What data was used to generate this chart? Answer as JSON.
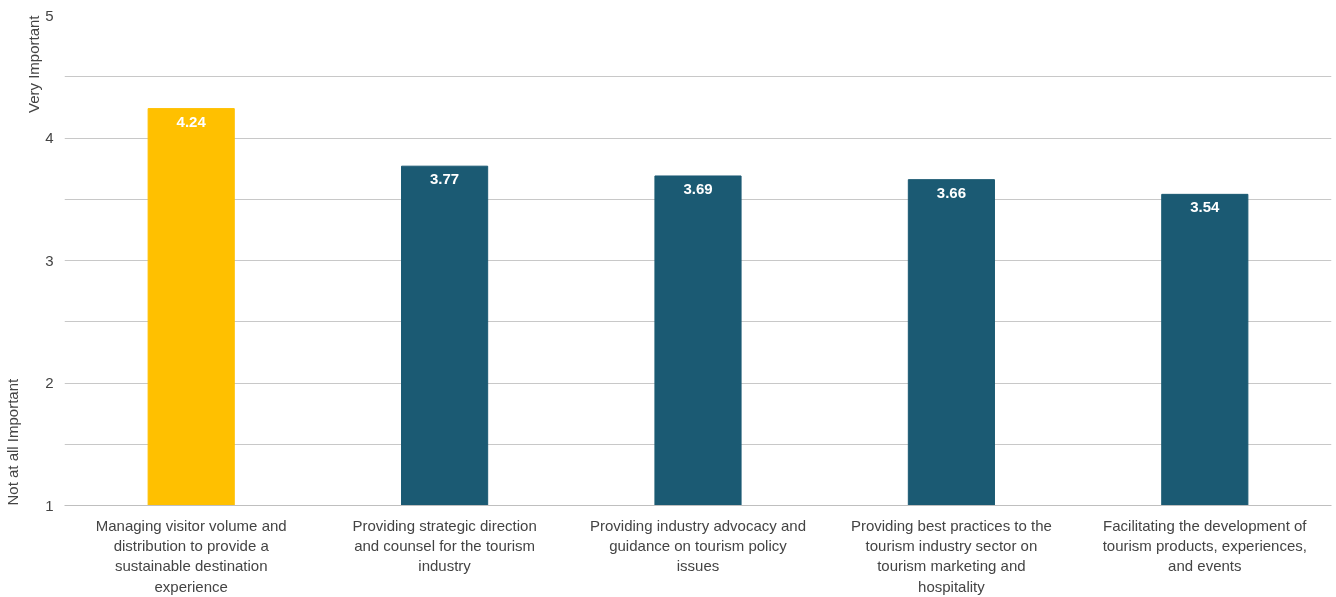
{
  "chart_data": {
    "type": "bar",
    "categories": [
      "Managing visitor volume and distribution to provide a sustainable destination experience",
      "Providing strategic direction and counsel for the tourism industry",
      "Providing industry advocacy and guidance on tourism policy issues",
      "Providing best practices to the tourism industry sector on tourism marketing and hospitality",
      "Facilitating the development of tourism products, experiences, and events"
    ],
    "values": [
      4.24,
      3.77,
      3.69,
      3.66,
      3.54
    ],
    "colors": [
      "#ffc000",
      "#1b5a73",
      "#1b5a73",
      "#1b5a73",
      "#1b5a73"
    ],
    "ylim": [
      1,
      5
    ],
    "yticks": [
      1,
      {
        "value": 1.5,
        "label": null
      },
      2,
      {
        "value": 2.5,
        "label": null
      },
      3,
      {
        "value": 3.5,
        "label": null
      },
      4,
      {
        "value": 4.5,
        "label": null
      },
      5
    ],
    "grid": "y",
    "data_labels": true,
    "annotations": [
      "Very Important",
      "Not at all Important"
    ]
  }
}
